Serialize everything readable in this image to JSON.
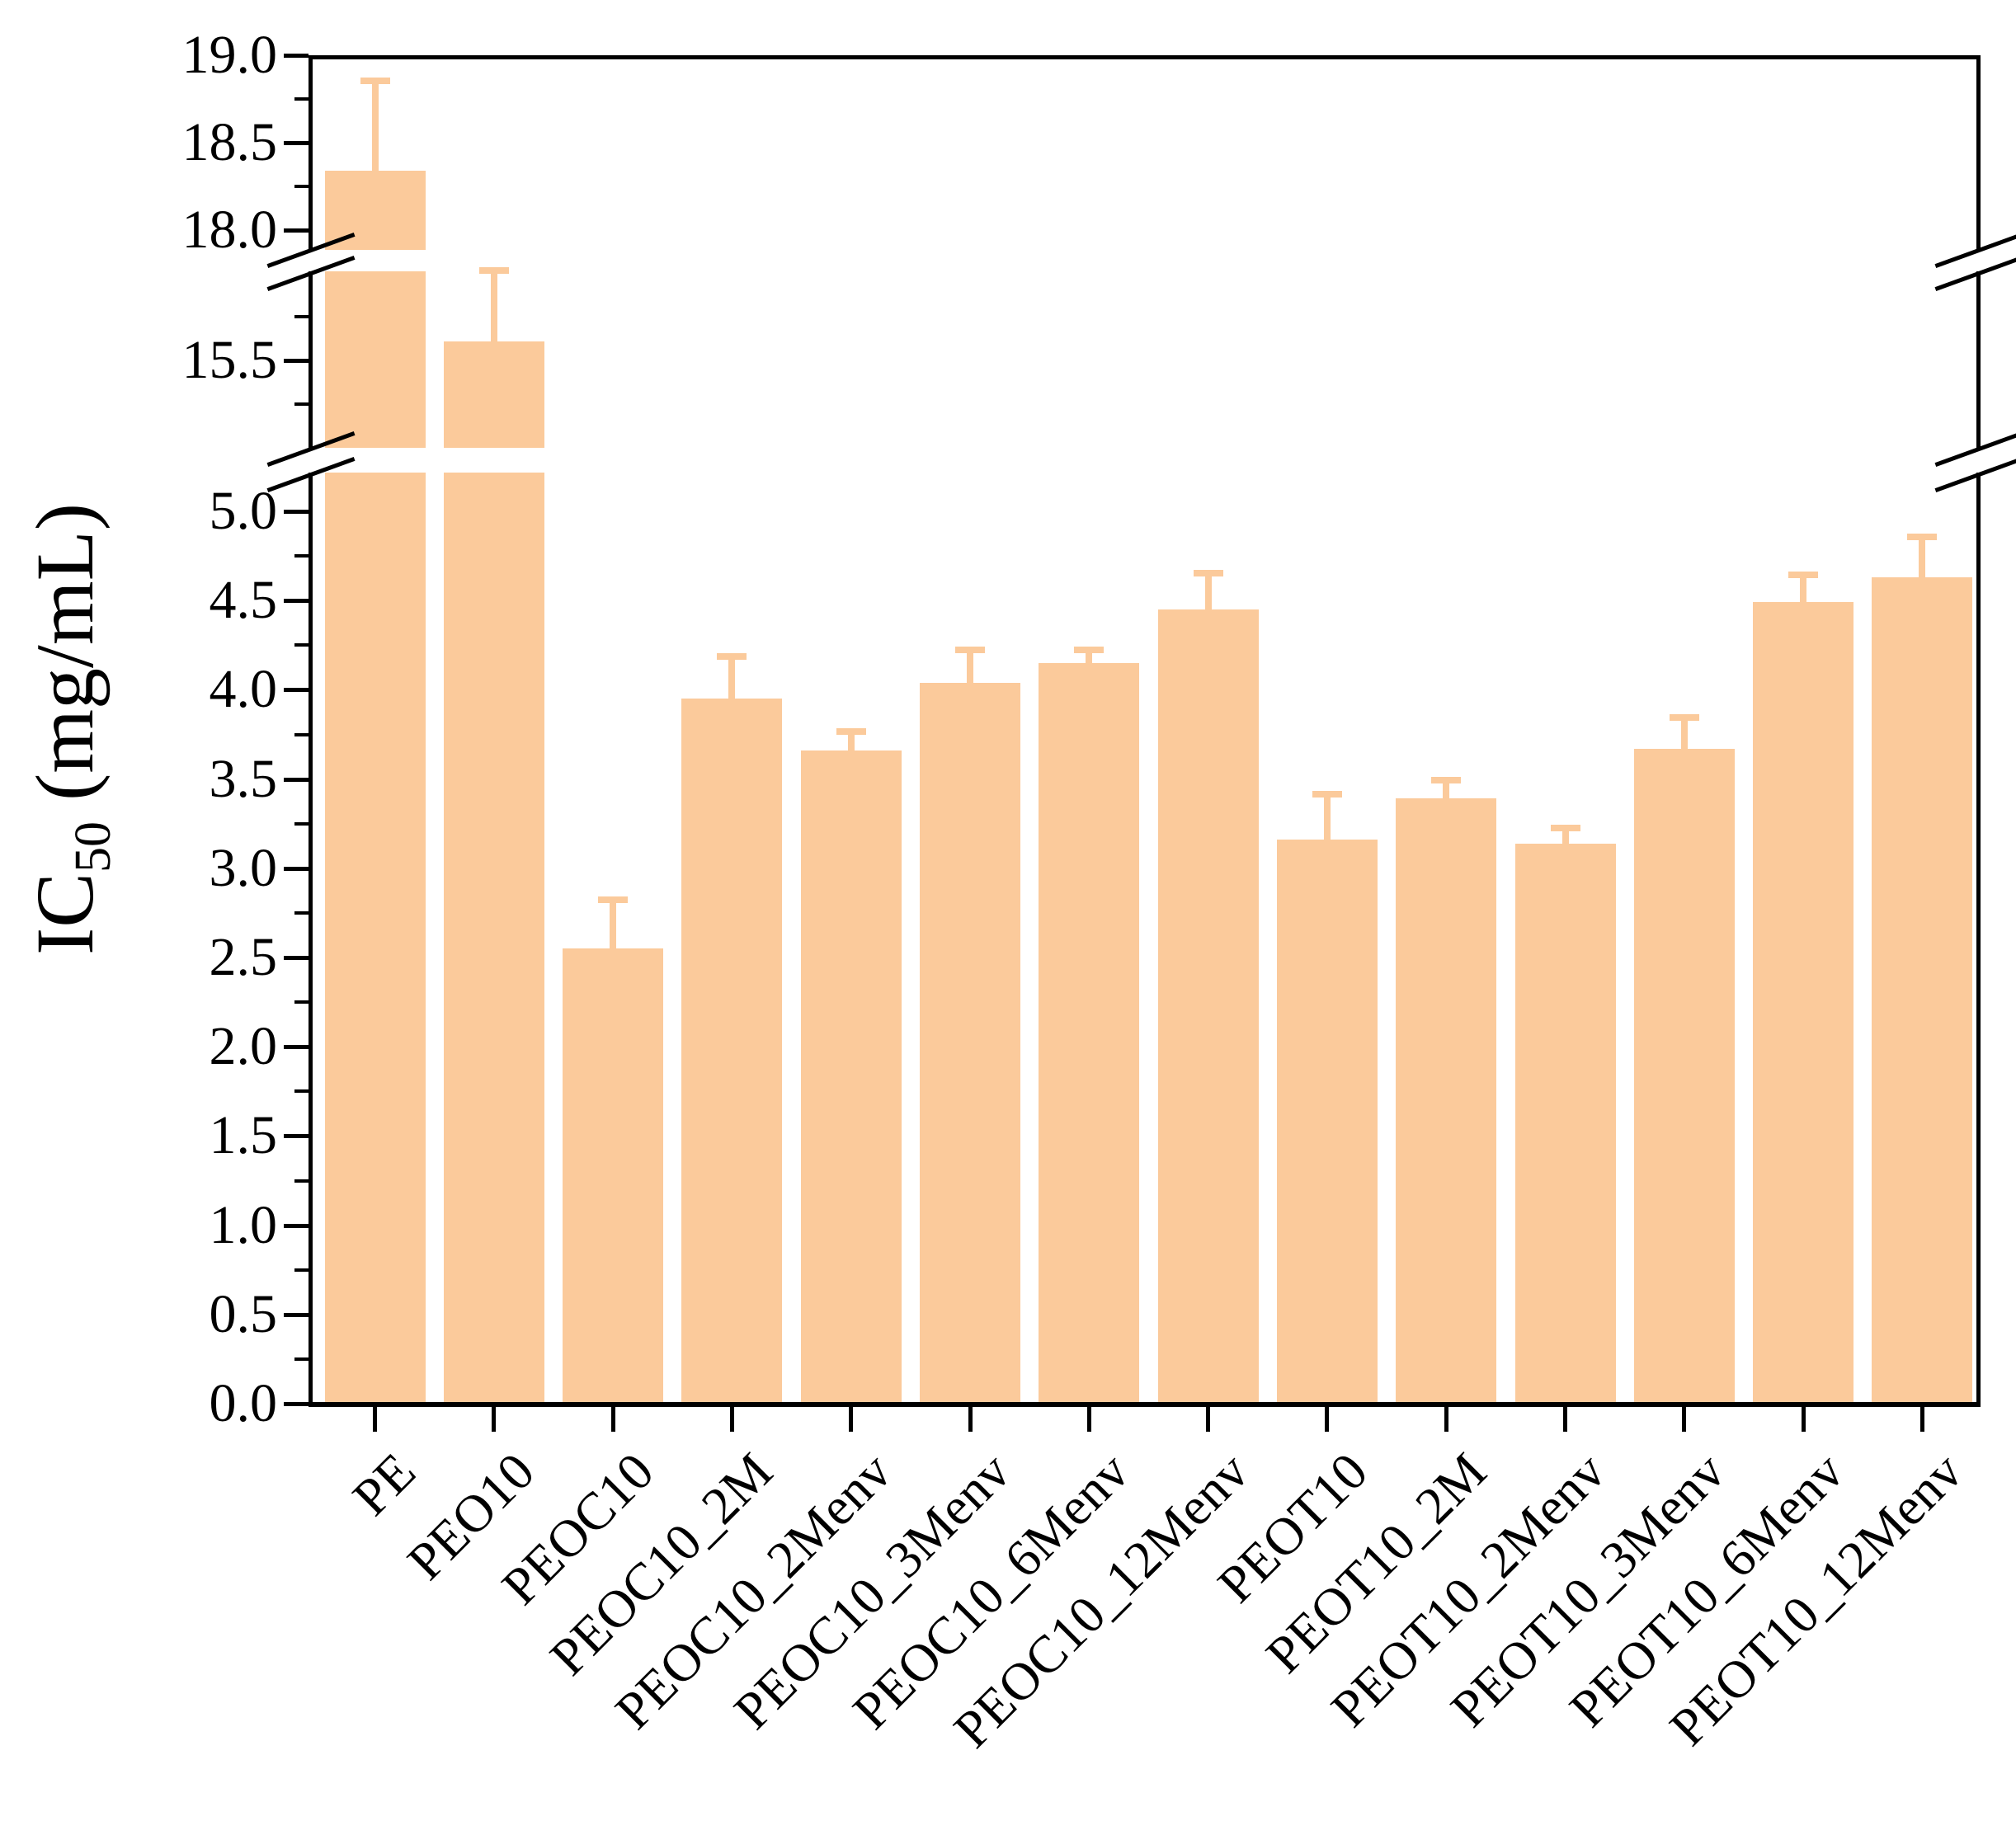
{
  "chart_data": {
    "type": "bar",
    "title": "",
    "xlabel": "",
    "ylabel": {
      "prefix": "IC",
      "sub": "50",
      "suffix": " (mg/mL)"
    },
    "categories": [
      "PE",
      "PEO10",
      "PEOC10",
      "PEOC10_2M",
      "PEOC10_2Menv",
      "PEOC10_3Menv",
      "PEOC10_6Menv",
      "PEOC10_12Menv",
      "PEOT10",
      "PEOT10_2M",
      "PEOT10_2Menv",
      "PEOT10_3Menv",
      "PEOT10_6Menv",
      "PEOT10_12Menv"
    ],
    "values": [
      18.34,
      15.61,
      2.55,
      3.95,
      3.66,
      4.04,
      4.15,
      4.45,
      3.16,
      3.39,
      3.14,
      3.67,
      4.49,
      4.63
    ],
    "error_tops": [
      18.86,
      16.02,
      2.83,
      4.19,
      3.77,
      4.23,
      4.23,
      4.66,
      3.42,
      3.5,
      3.23,
      3.85,
      4.65,
      4.86
    ],
    "bar_color": "#FBCA9B",
    "error_color": "#FBCA9B",
    "axis_color": "#000000",
    "text_color": "#000000",
    "grid": false,
    "legend": false,
    "broken_y_axis": {
      "segments": [
        {
          "range": [
            0.0,
            5.2
          ],
          "major_tick_labels": [
            "0.0",
            "0.5",
            "1.0",
            "1.5",
            "2.0",
            "2.5",
            "3.0",
            "3.5",
            "4.0",
            "4.5",
            "5.0"
          ],
          "major_tick_values": [
            0.0,
            0.5,
            1.0,
            1.5,
            2.0,
            2.5,
            3.0,
            3.5,
            4.0,
            4.5,
            5.0
          ]
        },
        {
          "range": [
            15.0,
            16.0
          ],
          "major_tick_labels": [
            "15.5"
          ],
          "major_tick_values": [
            15.5
          ]
        },
        {
          "range": [
            17.9,
            19.0
          ],
          "major_tick_labels": [
            "18.0",
            "18.5",
            "19.0"
          ],
          "major_tick_values": [
            18.0,
            18.5,
            19.0
          ]
        }
      ],
      "minor_tick_step": 0.25
    }
  }
}
